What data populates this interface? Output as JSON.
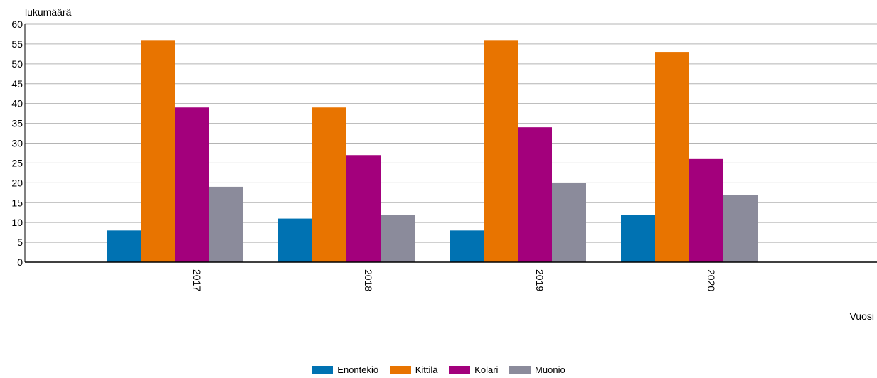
{
  "chart_data": {
    "type": "bar",
    "ylabel": "lukumäärä",
    "xlabel": "Vuosi",
    "categories": [
      "2017",
      "2018",
      "2019",
      "2020"
    ],
    "ylim": [
      0,
      60
    ],
    "yticks": [
      0,
      5,
      10,
      15,
      20,
      25,
      30,
      35,
      40,
      45,
      50,
      55,
      60
    ],
    "grid": true,
    "legend_position": "bottom",
    "series": [
      {
        "name": "Enontekiö",
        "color": "#0072b2",
        "values": [
          8,
          11,
          8,
          12
        ]
      },
      {
        "name": "Kittilä",
        "color": "#e87400",
        "values": [
          56,
          39,
          56,
          53
        ]
      },
      {
        "name": "Kolari",
        "color": "#a3007c",
        "values": [
          39,
          27,
          34,
          26
        ]
      },
      {
        "name": "Muonio",
        "color": "#8b8b9b",
        "values": [
          19,
          12,
          20,
          17
        ]
      }
    ]
  }
}
